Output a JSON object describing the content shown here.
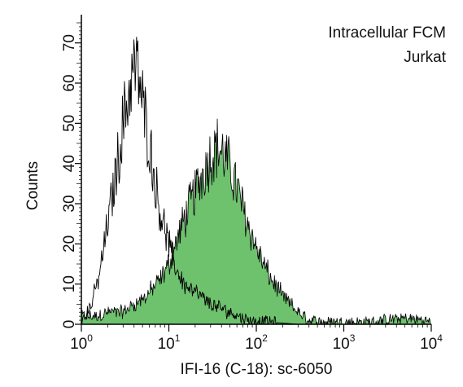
{
  "chart_data": {
    "type": "area",
    "annotation": [
      "Intracellular FCM",
      "Jurkat"
    ],
    "xlabel": "IFI-16 (C-18): sc-6050",
    "ylabel": "Counts",
    "x_scale": "log",
    "xlim": [
      1,
      10000
    ],
    "ylim": [
      0,
      75
    ],
    "x_ticks": [
      {
        "base": "10",
        "exp": "0",
        "value": 1
      },
      {
        "base": "10",
        "exp": "1",
        "value": 10
      },
      {
        "base": "10",
        "exp": "2",
        "value": 100
      },
      {
        "base": "10",
        "exp": "3",
        "value": 1000
      },
      {
        "base": "10",
        "exp": "4",
        "value": 10000
      }
    ],
    "y_ticks": [
      "0",
      "10",
      "20",
      "30",
      "40",
      "50",
      "60",
      "70"
    ],
    "grid": false,
    "fill_color": "#6ec26e",
    "line_color": "#000000",
    "series": [
      {
        "style": "outline",
        "x": [
          1,
          1.3,
          1.6,
          2,
          2.5,
          3,
          3.5,
          4,
          4.5,
          5,
          6,
          7,
          8,
          10,
          12,
          15,
          20,
          30,
          50,
          80,
          150,
          300,
          1000,
          10000
        ],
        "y": [
          0,
          5,
          12,
          25,
          38,
          50,
          58,
          64,
          62,
          55,
          45,
          35,
          28,
          20,
          14,
          10,
          8,
          5,
          3,
          1,
          0.5,
          0,
          0,
          0
        ]
      },
      {
        "style": "filled",
        "x": [
          1,
          1.5,
          2,
          3,
          4,
          5,
          6,
          8,
          10,
          12,
          15,
          20,
          25,
          30,
          35,
          40,
          50,
          60,
          70,
          80,
          100,
          120,
          150,
          200,
          300,
          400,
          600,
          1000,
          2000,
          3000,
          5000,
          8000,
          10000
        ],
        "y": [
          2,
          2,
          3,
          3,
          5,
          6,
          8,
          11,
          15,
          20,
          26,
          33,
          38,
          42,
          44,
          43,
          39,
          34,
          29,
          25,
          19,
          15,
          11,
          7,
          3,
          1,
          0.5,
          0.5,
          0.5,
          1,
          1.5,
          1,
          0.5
        ]
      }
    ]
  }
}
